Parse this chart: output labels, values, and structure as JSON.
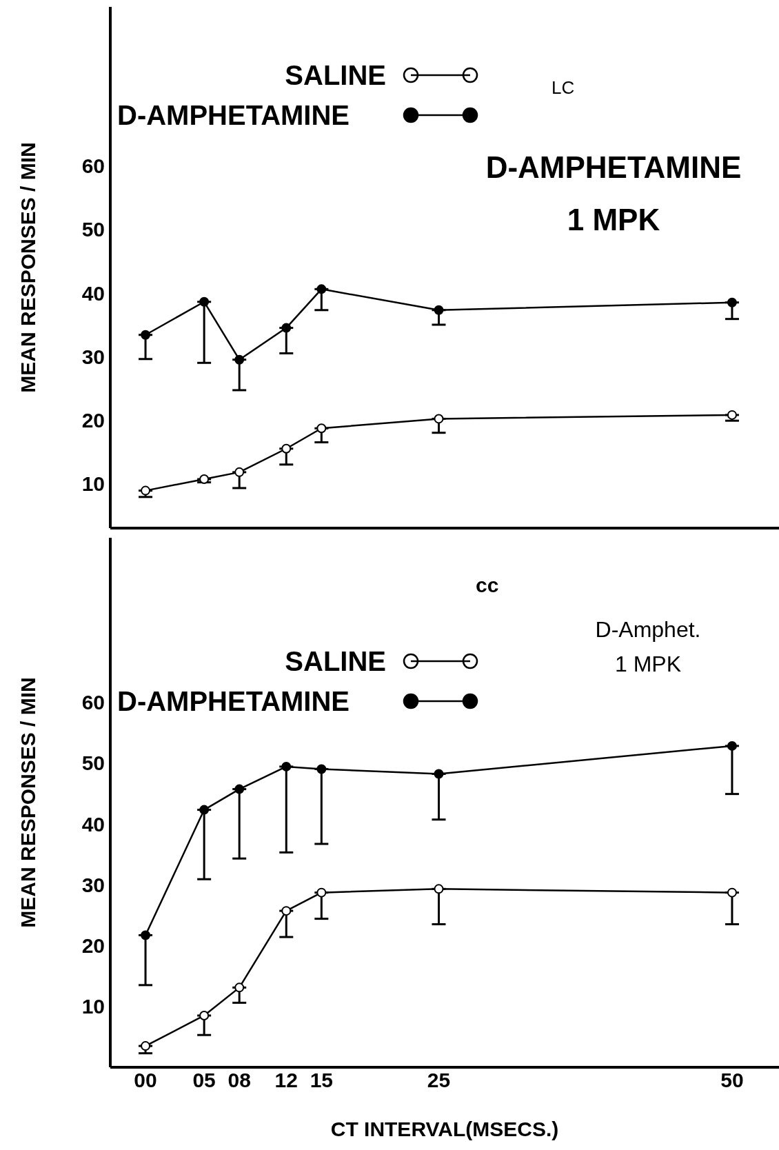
{
  "chart_data": [
    {
      "type": "line",
      "ylabel": "MEAN RESPONSES / MIN",
      "annotations": [
        "LC",
        "D-AMPHETAMINE 1 MPK"
      ],
      "x": [
        0,
        5,
        8,
        12,
        15,
        25,
        50
      ],
      "xlim": [
        -3,
        54
      ],
      "xticks": [
        {
          "value": 0,
          "label": null
        },
        {
          "value": 5,
          "label": null
        },
        {
          "value": 8,
          "label": null
        },
        {
          "value": 12,
          "label": null
        },
        {
          "value": 15,
          "label": null
        },
        {
          "value": 25,
          "label": null
        },
        {
          "value": 50,
          "label": null
        }
      ],
      "ylim": [
        3,
        85
      ],
      "yticks": [
        10,
        20,
        30,
        40,
        50,
        60
      ],
      "tick_labels": "y",
      "grid": false,
      "legend": "top left",
      "marker": "circle",
      "line_style": "solid",
      "series": [
        {
          "name": "SALINE",
          "color": "#000000",
          "values": [
            8.9,
            10.7,
            11.8,
            15.5,
            18.7,
            20.2,
            20.8
          ],
          "errors": [
            [
              7.9,
              8.9
            ],
            [
              10.2,
              10.7
            ],
            [
              9.3,
              11.8
            ],
            [
              13,
              15.5
            ],
            [
              16.5,
              18.7
            ],
            [
              18,
              20.2
            ],
            [
              19.9,
              20.8
            ]
          ]
        },
        {
          "name": "D-AMPHETAMINE",
          "color": "#000000",
          "values": [
            33.4,
            38.6,
            29.5,
            34.5,
            40.6,
            37.3,
            38.5
          ],
          "errors": [
            [
              29.6,
              33.4
            ],
            [
              29,
              38.6
            ],
            [
              24.7,
              29.5
            ],
            [
              30.5,
              34.5
            ],
            [
              37.3,
              40.6
            ],
            [
              35,
              37.3
            ],
            [
              35.9,
              38.5
            ]
          ]
        }
      ]
    },
    {
      "type": "line",
      "ylabel": "MEAN RESPONSES / MIN",
      "xlabel": "CT INTERVAL(MSECS.)",
      "annotations": [
        "cc",
        "D-Amphet. 1 MPK"
      ],
      "x": [
        0,
        5,
        8,
        12,
        15,
        25,
        50
      ],
      "xlim": [
        -3,
        54
      ],
      "xticks": [
        {
          "value": 0,
          "label": "00"
        },
        {
          "value": 5,
          "label": "05"
        },
        {
          "value": 8,
          "label": "08"
        },
        {
          "value": 12,
          "label": "12"
        },
        {
          "value": 15,
          "label": "15"
        },
        {
          "value": 25,
          "label": "25"
        },
        {
          "value": 50,
          "label": "50"
        }
      ],
      "ylim": [
        0,
        87
      ],
      "yticks": [
        10,
        20,
        30,
        40,
        50,
        60
      ],
      "grid": false,
      "legend": "top left",
      "marker": "circle",
      "line_style": "solid",
      "series": [
        {
          "name": "SALINE",
          "color": "#000000",
          "values": [
            3.5,
            8.5,
            13.1,
            25.7,
            28.7,
            29.3,
            28.7
          ],
          "errors": [
            [
              2.3,
              3.5
            ],
            [
              5.3,
              8.5
            ],
            [
              10.6,
              13.1
            ],
            [
              21.4,
              25.7
            ],
            [
              24.4,
              28.7
            ],
            [
              23.5,
              29.3
            ],
            [
              23.5,
              28.7
            ]
          ]
        },
        {
          "name": "D-AMPHETAMINE",
          "color": "#000000",
          "values": [
            21.7,
            42.3,
            45.7,
            49.4,
            49,
            48.2,
            52.8
          ],
          "errors": [
            [
              13.5,
              21.7
            ],
            [
              30.9,
              42.3
            ],
            [
              34.3,
              45.7
            ],
            [
              35.3,
              49.4
            ],
            [
              36.7,
              49
            ],
            [
              40.7,
              48.2
            ],
            [
              44.9,
              52.8
            ]
          ]
        }
      ]
    }
  ]
}
